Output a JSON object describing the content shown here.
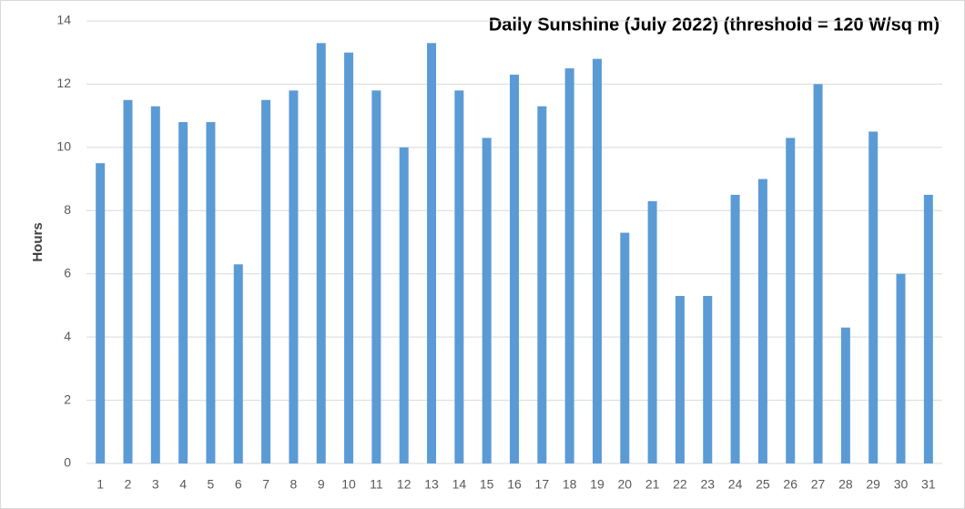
{
  "chart_data": {
    "type": "bar",
    "title": "Daily Sunshine (July 2022) (threshold = 120 W/sq m)",
    "y_label": "Hours",
    "categories": [
      "1",
      "2",
      "3",
      "4",
      "5",
      "6",
      "7",
      "8",
      "9",
      "10",
      "11",
      "12",
      "13",
      "14",
      "15",
      "16",
      "17",
      "18",
      "19",
      "20",
      "21",
      "22",
      "23",
      "24",
      "25",
      "26",
      "27",
      "28",
      "29",
      "30",
      "31"
    ],
    "values": [
      9.5,
      11.5,
      11.3,
      10.8,
      10.8,
      6.3,
      11.5,
      11.8,
      13.3,
      13.0,
      11.8,
      10.0,
      13.3,
      11.8,
      10.3,
      12.3,
      11.3,
      12.5,
      12.8,
      7.3,
      8.3,
      5.3,
      5.3,
      8.5,
      9.0,
      10.3,
      12.0,
      4.3,
      10.5,
      6.0,
      8.5
    ],
    "color": "#5b9bd5",
    "ylim": [
      0,
      14
    ],
    "yticks": [
      0,
      2,
      4,
      6,
      8,
      10,
      12,
      14
    ],
    "grid": true
  }
}
